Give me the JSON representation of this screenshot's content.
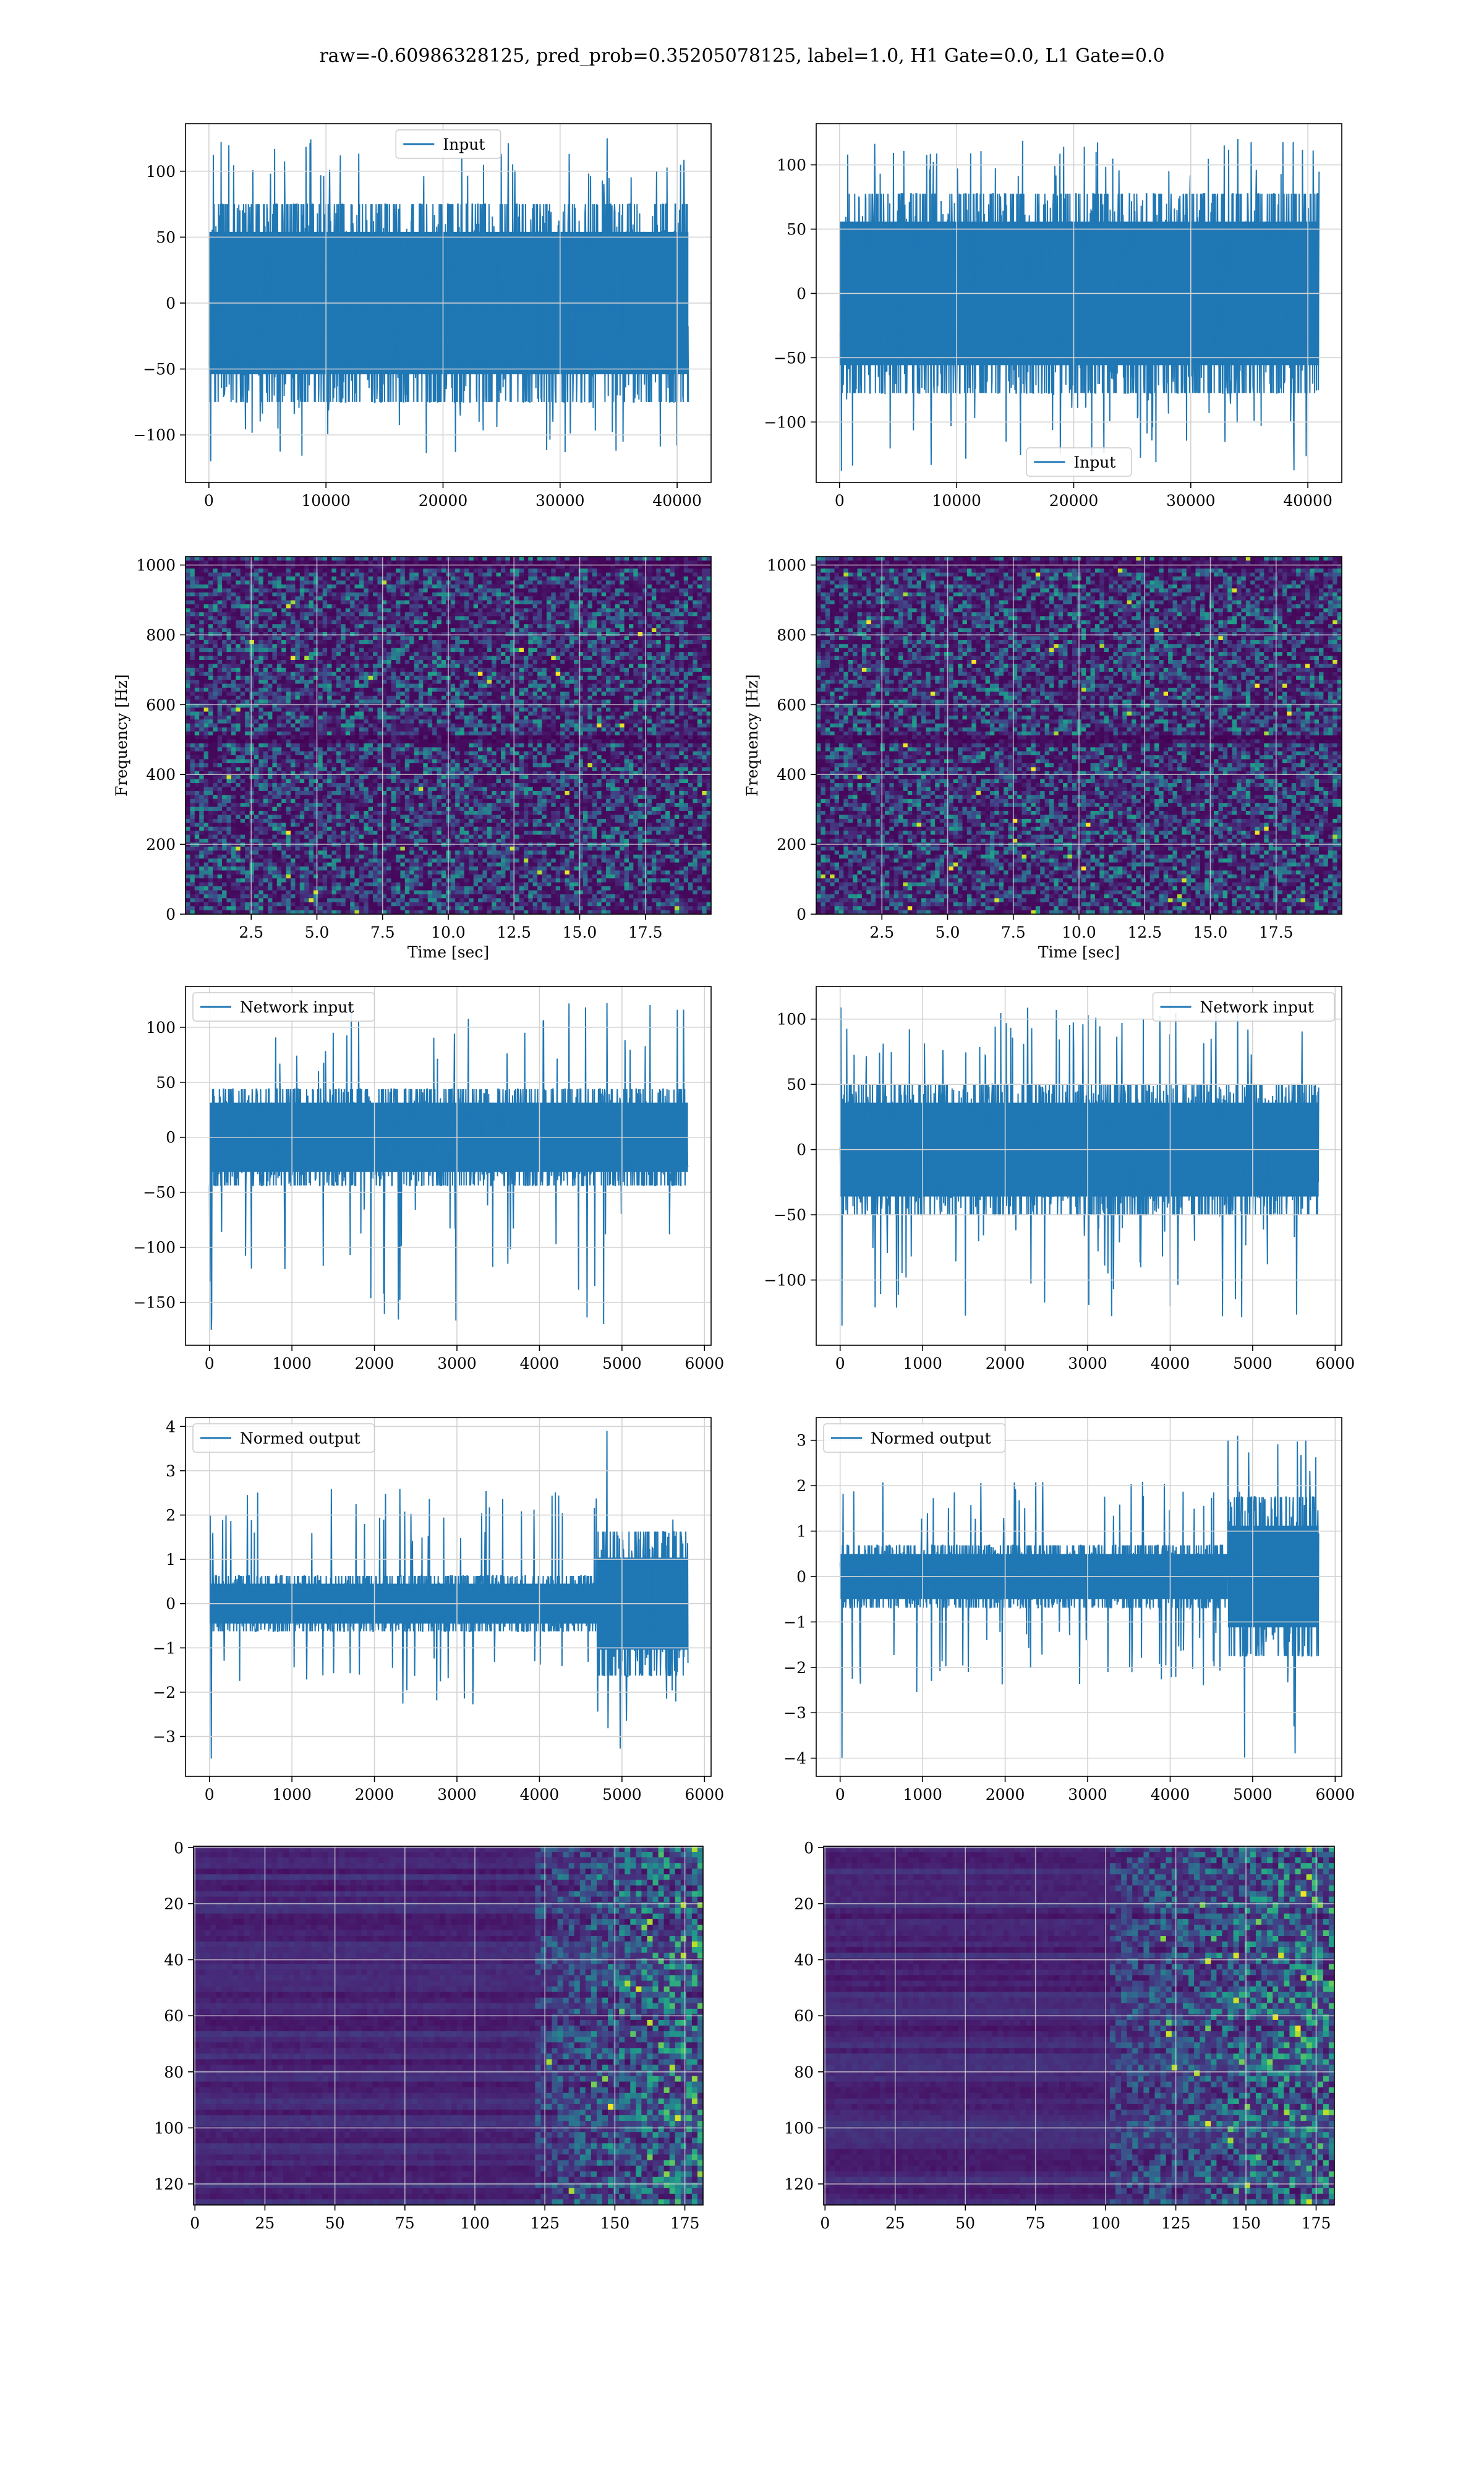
{
  "figure": {
    "title": "raw=-0.60986328125, pred_prob=0.35205078125, label=1.0, H1 Gate=0.0, L1 Gate=0.0"
  },
  "colors": {
    "line": "#1f77b4",
    "grid": "#d3d3d3",
    "viridis_dark": "#440154",
    "viridis_mid": "#21918c",
    "viridis_bright": "#fde725"
  },
  "chart_data": [
    {
      "id": "input-left",
      "type": "line",
      "row": 0,
      "col": 0,
      "xlabel": "",
      "ylabel": "",
      "xlim": [
        -2000,
        42900
      ],
      "ylim": [
        -136,
        136
      ],
      "xticks": [
        0,
        10000,
        20000,
        30000,
        40000
      ],
      "xtick_labels": [
        "0",
        "10000",
        "20000",
        "30000",
        "40000"
      ],
      "yticks": [
        -100,
        -50,
        0,
        50,
        100
      ],
      "ytick_labels": [
        "−100",
        "−50",
        "0",
        "50",
        "100"
      ],
      "legend": {
        "label": "Input",
        "position": "upper center"
      },
      "series": [
        {
          "name": "Input",
          "x_range": [
            0,
            40960
          ],
          "band": 60,
          "peak": [
            90,
            125
          ],
          "trough": [
            -70,
            -120
          ]
        }
      ]
    },
    {
      "id": "input-right",
      "type": "line",
      "row": 0,
      "col": 1,
      "xlabel": "",
      "ylabel": "",
      "xlim": [
        -2000,
        42900
      ],
      "ylim": [
        -147,
        132
      ],
      "xticks": [
        0,
        10000,
        20000,
        30000,
        40000
      ],
      "xtick_labels": [
        "0",
        "10000",
        "20000",
        "30000",
        "40000"
      ],
      "yticks": [
        -100,
        -50,
        0,
        50,
        100
      ],
      "ytick_labels": [
        "−100",
        "−50",
        "0",
        "50",
        "100"
      ],
      "legend": {
        "label": "Input",
        "position": "lower center"
      },
      "series": [
        {
          "name": "Input",
          "x_range": [
            0,
            40960
          ],
          "band": 62,
          "peak": [
            90,
            120
          ],
          "trough": [
            -70,
            -138
          ]
        }
      ]
    },
    {
      "id": "spectrogram-left",
      "type": "heatmap",
      "row": 1,
      "col": 0,
      "xlabel": "Time [sec]",
      "ylabel": "Frequency [Hz]",
      "xlim": [
        0,
        20
      ],
      "ylim": [
        0,
        1024
      ],
      "xticks": [
        2.5,
        5.0,
        7.5,
        10.0,
        12.5,
        15.0,
        17.5
      ],
      "xtick_labels": [
        "2.5",
        "5.0",
        "7.5",
        "10.0",
        "12.5",
        "15.0",
        "17.5"
      ],
      "yticks": [
        0,
        200,
        400,
        600,
        800,
        1000
      ],
      "ytick_labels": [
        "0",
        "200",
        "400",
        "600",
        "800",
        "1000"
      ],
      "colormap": "viridis",
      "dark_band_hz": [
        500,
        1000
      ]
    },
    {
      "id": "spectrogram-right",
      "type": "heatmap",
      "row": 1,
      "col": 1,
      "xlabel": "Time [sec]",
      "ylabel": "Frequency [Hz]",
      "xlim": [
        0,
        20
      ],
      "ylim": [
        0,
        1024
      ],
      "xticks": [
        2.5,
        5.0,
        7.5,
        10.0,
        12.5,
        15.0,
        17.5
      ],
      "xtick_labels": [
        "2.5",
        "5.0",
        "7.5",
        "10.0",
        "12.5",
        "15.0",
        "17.5"
      ],
      "yticks": [
        0,
        200,
        400,
        600,
        800,
        1000
      ],
      "ytick_labels": [
        "0",
        "200",
        "400",
        "600",
        "800",
        "1000"
      ],
      "colormap": "viridis",
      "dark_band_hz": [
        500,
        1000
      ]
    },
    {
      "id": "network-input-left",
      "type": "line",
      "row": 2,
      "col": 0,
      "xlabel": "",
      "ylabel": "",
      "xlim": [
        -290,
        6080
      ],
      "ylim": [
        -189,
        137
      ],
      "xticks": [
        0,
        1000,
        2000,
        3000,
        4000,
        5000,
        6000
      ],
      "xtick_labels": [
        "0",
        "1000",
        "2000",
        "3000",
        "4000",
        "5000",
        "6000"
      ],
      "yticks": [
        -150,
        -100,
        -50,
        0,
        50,
        100
      ],
      "ytick_labels": [
        "−150",
        "−100",
        "−50",
        "0",
        "50",
        "100"
      ],
      "legend": {
        "label": "Network input",
        "position": "upper left"
      },
      "series": [
        {
          "name": "Network input",
          "x_range": [
            0,
            5800
          ],
          "band": 35,
          "peak": [
            60,
            122
          ],
          "trough": [
            -60,
            -175
          ]
        }
      ]
    },
    {
      "id": "network-input-right",
      "type": "line",
      "row": 2,
      "col": 1,
      "xlabel": "",
      "ylabel": "",
      "xlim": [
        -290,
        6080
      ],
      "ylim": [
        -150,
        125
      ],
      "xticks": [
        0,
        1000,
        2000,
        3000,
        4000,
        5000,
        6000
      ],
      "xtick_labels": [
        "0",
        "1000",
        "2000",
        "3000",
        "4000",
        "5000",
        "6000"
      ],
      "yticks": [
        -100,
        -50,
        0,
        50,
        100
      ],
      "ytick_labels": [
        "−100",
        "−50",
        "0",
        "50",
        "100"
      ],
      "legend": {
        "label": "Network input",
        "position": "upper right"
      },
      "series": [
        {
          "name": "Network input",
          "x_range": [
            0,
            5800
          ],
          "band": 40,
          "peak": [
            70,
            110
          ],
          "trough": [
            -60,
            -135
          ]
        }
      ]
    },
    {
      "id": "normed-output-left",
      "type": "line",
      "row": 3,
      "col": 0,
      "xlabel": "",
      "ylabel": "",
      "xlim": [
        -290,
        6080
      ],
      "ylim": [
        -3.9,
        4.2
      ],
      "xticks": [
        0,
        1000,
        2000,
        3000,
        4000,
        5000,
        6000
      ],
      "xtick_labels": [
        "0",
        "1000",
        "2000",
        "3000",
        "4000",
        "5000",
        "6000"
      ],
      "yticks": [
        -3,
        -2,
        -1,
        0,
        1,
        2,
        3,
        4
      ],
      "ytick_labels": [
        "−3",
        "−2",
        "−1",
        "0",
        "1",
        "2",
        "3",
        "4"
      ],
      "legend": {
        "label": "Normed output",
        "position": "upper left"
      },
      "series": [
        {
          "name": "Normed output",
          "x_range": [
            0,
            5800
          ],
          "band": 0.5,
          "burst_start": 4700,
          "burst_band": 1.3,
          "peak": [
            1.3,
            3.9
          ],
          "trough": [
            -1.2,
            -3.5
          ]
        }
      ]
    },
    {
      "id": "normed-output-right",
      "type": "line",
      "row": 3,
      "col": 1,
      "xlabel": "",
      "ylabel": "",
      "xlim": [
        -290,
        6080
      ],
      "ylim": [
        -4.4,
        3.5
      ],
      "xticks": [
        0,
        1000,
        2000,
        3000,
        4000,
        5000,
        6000
      ],
      "xtick_labels": [
        "0",
        "1000",
        "2000",
        "3000",
        "4000",
        "5000",
        "6000"
      ],
      "yticks": [
        -4,
        -3,
        -2,
        -1,
        0,
        1,
        2,
        3
      ],
      "ytick_labels": [
        "−4",
        "−3",
        "−2",
        "−1",
        "0",
        "1",
        "2",
        "3"
      ],
      "legend": {
        "label": "Normed output",
        "position": "upper left"
      },
      "series": [
        {
          "name": "Normed output",
          "x_range": [
            0,
            5800
          ],
          "band": 0.55,
          "burst_start": 4700,
          "burst_band": 1.4,
          "peak": [
            1.2,
            3.1
          ],
          "trough": [
            -1.2,
            -4.0
          ]
        }
      ]
    },
    {
      "id": "features-left",
      "type": "heatmap",
      "row": 4,
      "col": 0,
      "xlabel": "",
      "ylabel": "",
      "xlim": [
        -0.5,
        181.5
      ],
      "ylim": [
        127.5,
        -0.5
      ],
      "xticks": [
        0,
        25,
        50,
        75,
        100,
        125,
        150,
        175
      ],
      "xtick_labels": [
        "0",
        "25",
        "50",
        "75",
        "100",
        "125",
        "150",
        "175"
      ],
      "yticks": [
        0,
        20,
        40,
        60,
        80,
        100,
        120
      ],
      "ytick_labels": [
        "0",
        "20",
        "40",
        "60",
        "80",
        "100",
        "120"
      ],
      "colormap": "viridis",
      "rows": 128,
      "cols": 182,
      "active_from_col": 120
    },
    {
      "id": "features-right",
      "type": "heatmap",
      "row": 4,
      "col": 1,
      "xlabel": "",
      "ylabel": "",
      "xlim": [
        -0.5,
        181.5
      ],
      "ylim": [
        127.5,
        -0.5
      ],
      "xticks": [
        0,
        25,
        50,
        75,
        100,
        125,
        150,
        175
      ],
      "xtick_labels": [
        "0",
        "25",
        "50",
        "75",
        "100",
        "125",
        "150",
        "175"
      ],
      "yticks": [
        0,
        20,
        40,
        60,
        80,
        100,
        120
      ],
      "ytick_labels": [
        "0",
        "20",
        "40",
        "60",
        "80",
        "100",
        "120"
      ],
      "colormap": "viridis",
      "rows": 128,
      "cols": 182,
      "active_from_col": 100
    }
  ]
}
